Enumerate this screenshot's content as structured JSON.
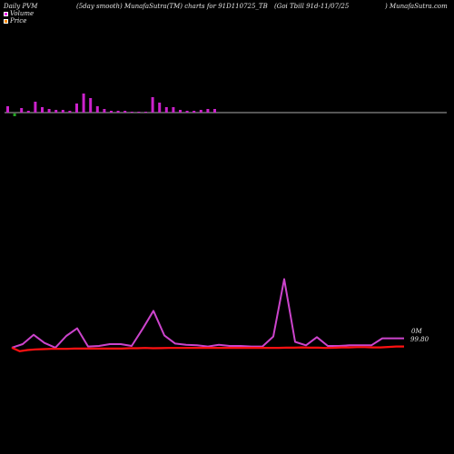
{
  "header": {
    "left": "Daily PVM",
    "center": "(5day smooth) MunafaSutra(TM) charts for 91D110725_TB",
    "right": "(Goi  Tbill 91d-11/07/25",
    "brand": ") MunafaSutra.com"
  },
  "legend": [
    {
      "label": "Volume",
      "color": "#ee22ee"
    },
    {
      "label": "Price",
      "color": "#ff8800"
    }
  ],
  "value_labels": {
    "volume": "0M",
    "price": "99.80"
  },
  "colors": {
    "volume_up": "#cc22cc",
    "volume_down": "#22aa22",
    "price_line": "#ff1111",
    "pvm_line": "#cc44cc",
    "baseline": "#aaaaaa"
  },
  "chart_data": [
    {
      "type": "bar",
      "title": "Volume",
      "values": [
        7,
        -3,
        5,
        2,
        12,
        6,
        4,
        3,
        3,
        2,
        10,
        21,
        16,
        7,
        4,
        2,
        2,
        2,
        1,
        1,
        0,
        17,
        11,
        6,
        6,
        3,
        2,
        2,
        3,
        4,
        4
      ],
      "ylim": [
        -3,
        21
      ]
    },
    {
      "type": "line",
      "series": [
        {
          "name": "Price",
          "values": [
            99.6,
            99.0,
            99.2,
            99.3,
            99.35,
            99.4,
            99.4,
            99.4,
            99.45,
            99.45,
            99.45,
            99.45,
            99.45,
            99.45,
            99.45,
            99.5,
            99.5,
            99.55,
            99.5,
            99.52,
            99.55,
            99.55,
            99.55,
            99.57,
            99.57,
            99.57,
            99.57,
            99.57,
            99.57,
            99.57,
            99.57,
            99.57,
            99.57,
            99.57,
            99.57,
            99.6,
            99.6,
            99.65,
            99.6,
            99.6,
            99.55,
            99.58,
            99.65,
            99.65,
            99.7,
            99.7,
            99.65,
            99.65,
            99.72,
            99.8,
            99.8
          ]
        },
        {
          "name": "PVM",
          "values": [
            99.6,
            100.2,
            101.8,
            100.4,
            99.6,
            101.6,
            102.9,
            99.8,
            99.9,
            100.2,
            100.2,
            99.9,
            102.8,
            105.9,
            101.7,
            100.3,
            100.1,
            100.0,
            99.8,
            100.1,
            99.9,
            99.9,
            99.8,
            99.8,
            101.5,
            111.3,
            100.6,
            100.0,
            101.4,
            99.9,
            99.9,
            100.0,
            100.0,
            100.0,
            101.2,
            101.2,
            101.2
          ]
        }
      ],
      "ylim": [
        98.5,
        114
      ]
    }
  ]
}
